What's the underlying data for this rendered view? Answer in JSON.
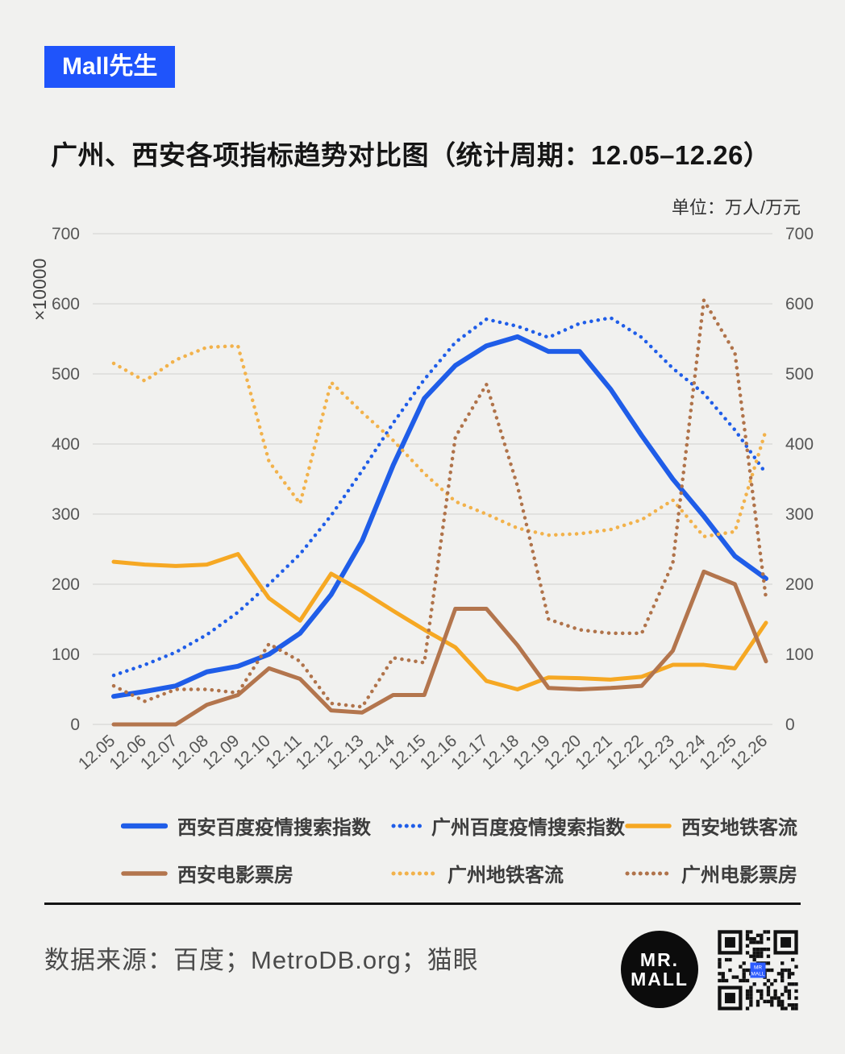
{
  "badge": {
    "label": "Mall先生",
    "color": "#1f54fb"
  },
  "title": "广州、西安各项指标趋势对比图（统计周期：12.05–12.26）",
  "unit_note": "单位：万人/万元",
  "y_axis_label": "×10000",
  "footer": {
    "source": "数据来源：百度；MetroDB.org；猫眼"
  },
  "logo": {
    "line1": "MR.",
    "line2": "MALL"
  },
  "qr": {
    "accent": "#2d5bff",
    "label1": "MR",
    "label2": "MALL"
  },
  "chart_data": {
    "type": "line",
    "title": "广州、西安各项指标趋势对比图（统计周期：12.05–12.26）",
    "xlabel": "",
    "ylabel": "×10000",
    "ylim": [
      0,
      700
    ],
    "ytick_interval": 100,
    "grid": true,
    "legend_position": "bottom",
    "categories": [
      "12.05",
      "12.06",
      "12.07",
      "12.08",
      "12.09",
      "12.10",
      "12.11",
      "12.12",
      "12.13",
      "12.14",
      "12.15",
      "12.16",
      "12.17",
      "12.18",
      "12.19",
      "12.20",
      "12.21",
      "12.22",
      "12.23",
      "12.24",
      "12.25",
      "12.26"
    ],
    "series": [
      {
        "name": "西安百度疫情搜索指数",
        "style": "solid",
        "color": "#1f5de8",
        "width": 6,
        "values": [
          40,
          47,
          55,
          75,
          83,
          100,
          130,
          185,
          262,
          370,
          465,
          512,
          540,
          553,
          532,
          532,
          478,
          412,
          350,
          297,
          240,
          208
        ]
      },
      {
        "name": "广州百度疫情搜索指数",
        "style": "dotted",
        "color": "#1f5de8",
        "width": 4.5,
        "values": [
          70,
          85,
          103,
          128,
          160,
          200,
          243,
          298,
          362,
          430,
          492,
          545,
          578,
          568,
          552,
          572,
          580,
          552,
          508,
          472,
          420,
          358
        ]
      },
      {
        "name": "西安地铁客流",
        "style": "solid",
        "color": "#f6a823",
        "width": 5,
        "values": [
          232,
          228,
          226,
          228,
          243,
          180,
          148,
          215,
          190,
          162,
          135,
          110,
          62,
          50,
          67,
          66,
          64,
          68,
          85,
          85,
          80,
          145
        ]
      },
      {
        "name": "西安电影票房",
        "style": "solid",
        "color": "#b3754d",
        "width": 5,
        "values": [
          0,
          0,
          0,
          28,
          42,
          80,
          65,
          20,
          17,
          42,
          42,
          165,
          165,
          113,
          52,
          50,
          52,
          55,
          105,
          218,
          200,
          90
        ]
      },
      {
        "name": "广州地铁客流",
        "style": "dotted",
        "color": "#f2b24b",
        "width": 4.5,
        "values": [
          515,
          490,
          520,
          538,
          540,
          375,
          315,
          488,
          445,
          405,
          358,
          318,
          300,
          280,
          270,
          272,
          278,
          292,
          320,
          268,
          275,
          420
        ]
      },
      {
        "name": "广州电影票房",
        "style": "dotted",
        "color": "#b0734a",
        "width": 4.5,
        "values": [
          55,
          33,
          50,
          50,
          45,
          115,
          90,
          30,
          25,
          95,
          88,
          410,
          485,
          340,
          150,
          135,
          130,
          130,
          230,
          605,
          530,
          180
        ]
      }
    ]
  }
}
